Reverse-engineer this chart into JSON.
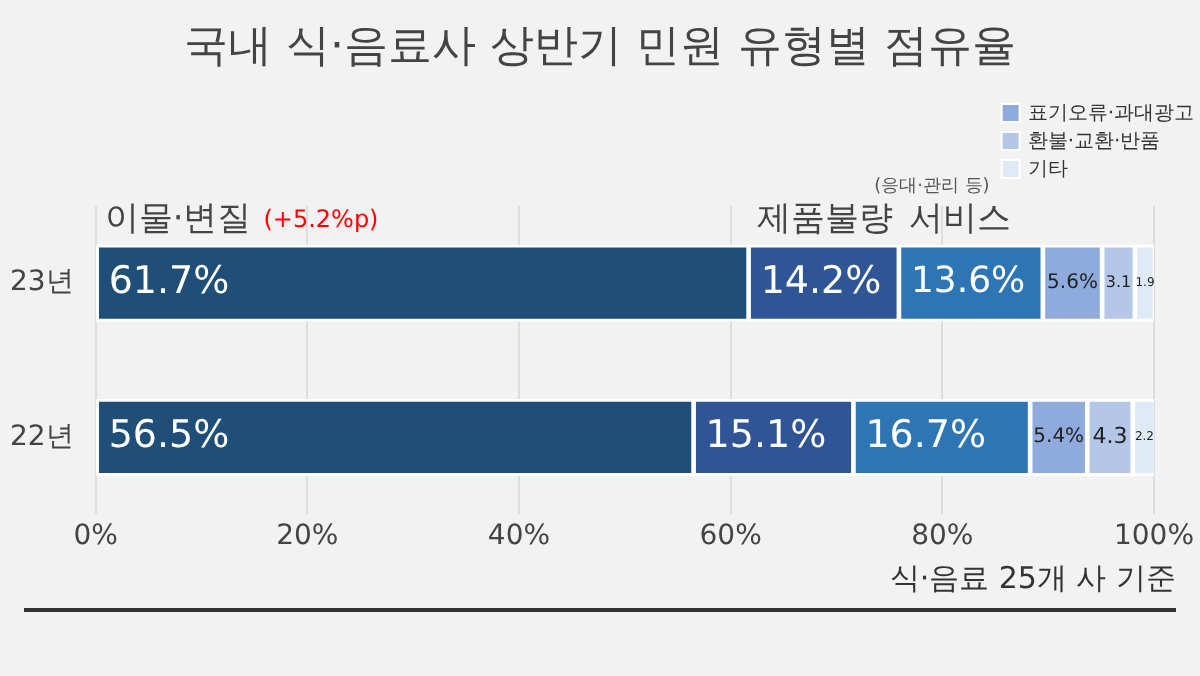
{
  "chart_data": {
    "type": "bar",
    "orientation": "horizontal",
    "stacked": true,
    "title": "국내 식·음료사 상반기 민원 유형별 점유율",
    "categories": [
      "23년",
      "22년"
    ],
    "series": [
      {
        "name": "이물·변질",
        "color": "#1f4e79",
        "values": [
          61.7,
          56.5
        ],
        "value_labels": [
          "61.7%",
          "56.5%"
        ]
      },
      {
        "name": "제품불량",
        "color": "#2f5597",
        "values": [
          14.2,
          15.1
        ],
        "value_labels": [
          "14.2%",
          "15.1%"
        ]
      },
      {
        "name": "서비스",
        "color": "#2e75b6",
        "values": [
          13.6,
          16.7
        ],
        "value_labels": [
          "13.6%",
          "16.7%"
        ]
      },
      {
        "name": "표기오류·과대광고",
        "color": "#8faadc",
        "values": [
          5.6,
          5.4
        ],
        "value_labels": [
          "5.6%",
          "5.4%"
        ]
      },
      {
        "name": "환불·교환·반품",
        "color": "#b4c7e7",
        "values": [
          3.1,
          4.3
        ],
        "value_labels": [
          "3.1",
          "4.3"
        ]
      },
      {
        "name": "기타",
        "color": "#deebf7",
        "values": [
          1.9,
          2.2
        ],
        "value_labels": [
          "1.9",
          "2.2"
        ]
      }
    ],
    "xlim": [
      0,
      100
    ],
    "xticks": [
      {
        "value": 0,
        "label": "0%"
      },
      {
        "value": 20,
        "label": "20%"
      },
      {
        "value": 40,
        "label": "40%"
      },
      {
        "value": 60,
        "label": "60%"
      },
      {
        "value": 80,
        "label": "80%"
      },
      {
        "value": 100,
        "label": "100%"
      }
    ],
    "grid": "x",
    "legend": "top right",
    "annotations": [
      "(+5.2%p)",
      "(응대·관리 등)",
      "식·음료 25개 사 기준"
    ]
  }
}
